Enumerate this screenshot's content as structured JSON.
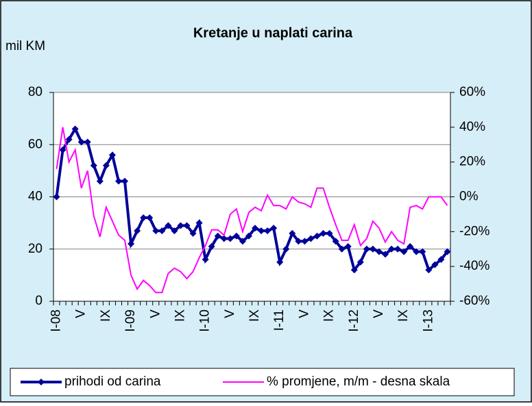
{
  "chart_data": {
    "type": "line",
    "title": "Kretanje u naplati carina",
    "ylabel": "mil KM",
    "categories": [
      "I-08",
      null,
      null,
      null,
      "V",
      null,
      null,
      null,
      "IX",
      null,
      null,
      null,
      "I-09",
      null,
      null,
      null,
      "V",
      null,
      null,
      null,
      "IX",
      null,
      null,
      null,
      "I-10",
      null,
      null,
      null,
      "V",
      null,
      null,
      null,
      "IX",
      null,
      null,
      null,
      "I-11",
      null,
      null,
      null,
      "V",
      null,
      null,
      null,
      "IX",
      null,
      null,
      null,
      "I-12",
      null,
      null,
      null,
      "V",
      null,
      null,
      null,
      "IX",
      null,
      null,
      null,
      "I-13",
      null,
      null,
      null
    ],
    "series": [
      {
        "name": "prihodi od carina",
        "color": "#000099",
        "values": [
          40,
          58,
          62,
          66,
          61,
          61,
          52,
          46,
          52,
          56,
          46,
          46,
          22,
          27,
          32,
          32,
          27,
          27,
          29,
          27,
          29,
          29,
          26,
          30,
          16,
          21,
          25,
          24,
          24,
          25,
          23,
          25,
          28,
          27,
          27,
          28,
          15,
          20,
          26,
          23,
          23,
          24,
          25,
          26,
          26,
          23,
          20,
          21,
          12,
          15,
          20,
          20,
          19,
          18,
          20,
          20,
          19,
          21,
          19,
          19,
          12,
          14,
          16,
          19
        ]
      },
      {
        "name": "% promjene, m/m - desna skala",
        "color": "#ff00ff",
        "axis": "y2",
        "values": [
          16,
          40,
          20,
          27,
          5,
          15,
          -11,
          -23,
          -6,
          -14,
          -22,
          -25,
          -45,
          -53,
          -48,
          -51,
          -55,
          -55,
          -44,
          -41,
          -43,
          -47,
          -43,
          -35,
          -28,
          -19,
          -19,
          -22,
          -10,
          -7,
          -20,
          -9,
          -6,
          -8,
          1,
          -5,
          -5,
          -7,
          0,
          -3,
          -4,
          -6,
          5,
          5,
          -6,
          -16,
          -25,
          -25,
          -16,
          -28,
          -24,
          -14,
          -18,
          -26,
          -20,
          -25,
          -27,
          -6,
          -5,
          -7,
          0,
          0,
          0,
          -5
        ]
      }
    ],
    "ylim": [
      0,
      80
    ],
    "yticks": [
      0,
      20,
      40,
      60,
      80
    ],
    "y2lim": [
      -60,
      60
    ],
    "y2ticks": [
      {
        "value": -60,
        "label": "-60%"
      },
      {
        "value": -40,
        "label": "-40%"
      },
      {
        "value": -20,
        "label": "-20%"
      },
      {
        "value": 0,
        "label": "0%"
      },
      {
        "value": 20,
        "label": "20%"
      },
      {
        "value": 40,
        "label": "40%"
      },
      {
        "value": 60,
        "label": "60%"
      }
    ],
    "grid": true,
    "legend": "bottom"
  }
}
